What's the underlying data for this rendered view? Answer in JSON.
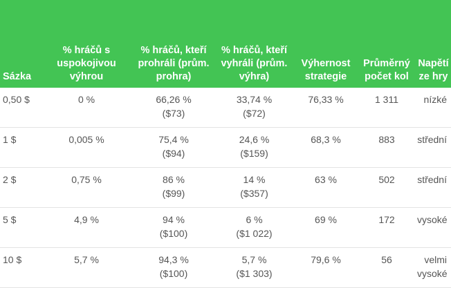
{
  "headers": [
    "Sázka",
    "% hráčů s uspokojivou výhrou",
    "% hráčů, kteří prohráli (prům. prohra)",
    "% hráčů, kteří vyhráli (prům. výhra)",
    "Výhernost strategie",
    "Průměrný počet kol",
    "Napětí ze hry"
  ],
  "rows": [
    [
      "0,50 $",
      "0 %",
      "66,26 %\n($73)",
      "33,74 %\n($72)",
      "76,33 %",
      "1 311",
      "nízké"
    ],
    [
      "1 $",
      "0,005 %",
      "75,4 %\n($94)",
      "24,6 %\n($159)",
      "68,3 %",
      "883",
      "střední"
    ],
    [
      "2 $",
      "0,75 %",
      "86 %\n($99)",
      "14 %\n($357)",
      "63 %",
      "502",
      "střední"
    ],
    [
      "5 $",
      "4,9 %",
      "94 %\n($100)",
      "6 %\n($1 022)",
      "69 %",
      "172",
      "vysoké"
    ],
    [
      "10 $",
      "5,7 %",
      "94,3 %\n($100)",
      "5,7 %\n($1 303)",
      "79,6 %",
      "56",
      "velmi vysoké"
    ]
  ]
}
